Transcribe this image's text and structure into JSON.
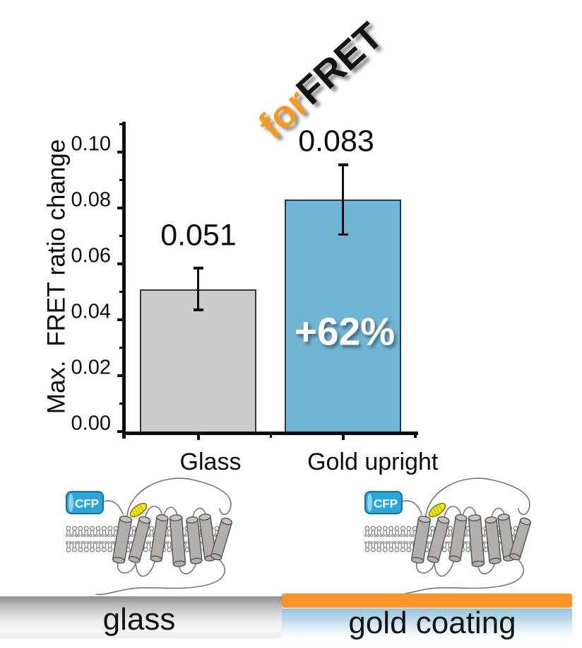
{
  "figure": {
    "title": {
      "prefix": "for",
      "main": "FRET",
      "prefix_color": "#F8991D",
      "main_color": "#131313"
    },
    "banners": {
      "glass_label": "glass",
      "gold_label": "gold coating",
      "gold_stripe_color": "#FA9428"
    },
    "cartoon": {
      "fluorophore_label": "CFP",
      "fluorophore_color": "#2AA7DB",
      "ligand_color": "#F2E916"
    }
  },
  "chart_data": {
    "type": "bar",
    "title": "forFRET",
    "categories": [
      "Glass",
      "Gold upright"
    ],
    "values": [
      0.051,
      0.083
    ],
    "value_labels": [
      "0.051",
      "0.083"
    ],
    "errors": [
      0.0075,
      0.0125
    ],
    "annotations": [
      {
        "text": "+62%",
        "target": "Gold upright"
      }
    ],
    "xlabel": "",
    "ylabel": "Max.  FRET ratio change",
    "ylim": [
      0,
      0.112
    ],
    "ytick_step": 0.02,
    "ytick_minor_step": 0.01,
    "ytick_labels": [
      "0.00",
      "0.02",
      "0.04",
      "0.06",
      "0.08",
      "0.10"
    ],
    "bar_colors": [
      "#CBCBCB",
      "#70B6D4"
    ],
    "bar_border_colors": [
      "#3A3A3A",
      "#1B3A5C"
    ],
    "grid": false,
    "legend": false
  }
}
